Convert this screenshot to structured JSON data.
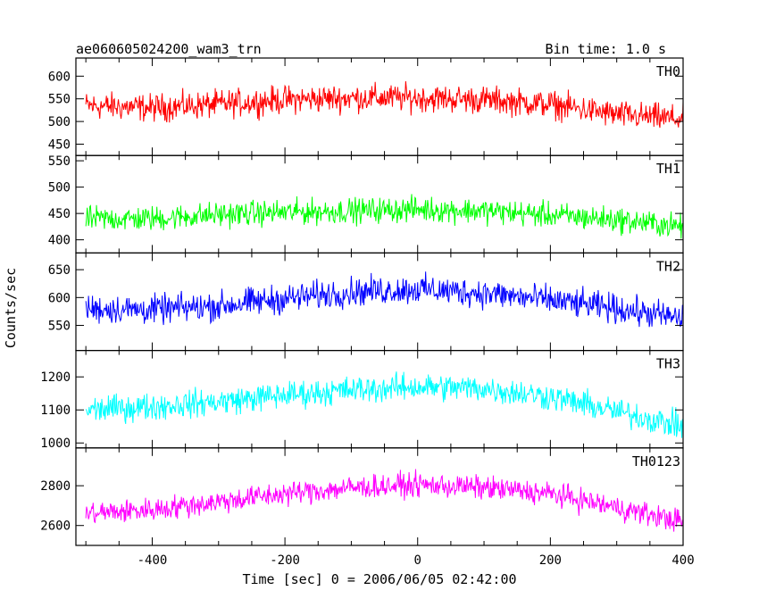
{
  "chart_data": {
    "type": "line",
    "title": "ae060605024200_wam3_trn",
    "subtitle": "Bin time: 1.0 s",
    "xlabel": "Time [sec] 0 = 2006/06/05 02:42:00",
    "ylabel": "Counts/sec",
    "xlim": [
      -515,
      400
    ],
    "xticks": [
      -400,
      -200,
      0,
      200,
      400
    ],
    "grid": false,
    "panels": [
      {
        "name": "TH0",
        "color": "#ff0000",
        "ylim": [
          425,
          640
        ],
        "yticks": [
          450,
          500,
          550,
          600
        ],
        "x": [
          -500,
          -400,
          -300,
          -200,
          -100,
          0,
          100,
          200,
          300,
          400
        ],
        "values": [
          535,
          530,
          538,
          548,
          552,
          552,
          548,
          538,
          515,
          505
        ],
        "noise": 28
      },
      {
        "name": "TH1",
        "color": "#00ff00",
        "ylim": [
          375,
          560
        ],
        "yticks": [
          400,
          450,
          500,
          550
        ],
        "x": [
          -500,
          -400,
          -300,
          -200,
          -100,
          0,
          100,
          200,
          300,
          400
        ],
        "values": [
          440,
          440,
          448,
          452,
          455,
          458,
          455,
          447,
          438,
          425
        ],
        "noise": 22
      },
      {
        "name": "TH2",
        "color": "#0000ff",
        "ylim": [
          505,
          680
        ],
        "yticks": [
          550,
          600,
          650
        ],
        "x": [
          -500,
          -400,
          -300,
          -200,
          -100,
          0,
          100,
          200,
          300,
          400
        ],
        "values": [
          580,
          578,
          585,
          598,
          610,
          615,
          608,
          595,
          580,
          562
        ],
        "noise": 24
      },
      {
        "name": "TH3",
        "color": "#00ffff",
        "ylim": [
          985,
          1280
        ],
        "yticks": [
          1000,
          1100,
          1200
        ],
        "x": [
          -500,
          -400,
          -300,
          -200,
          -100,
          0,
          100,
          200,
          300,
          400
        ],
        "values": [
          1100,
          1110,
          1125,
          1145,
          1160,
          1170,
          1165,
          1140,
          1095,
          1050
        ],
        "noise": 38
      },
      {
        "name": "TH0123",
        "color": "#ff00ff",
        "ylim": [
          2500,
          2990
        ],
        "yticks": [
          2600,
          2800
        ],
        "x": [
          -500,
          -400,
          -300,
          -200,
          -100,
          0,
          100,
          200,
          300,
          400
        ],
        "values": [
          2660,
          2680,
          2720,
          2760,
          2790,
          2805,
          2790,
          2760,
          2690,
          2620
        ],
        "noise": 55
      }
    ]
  }
}
